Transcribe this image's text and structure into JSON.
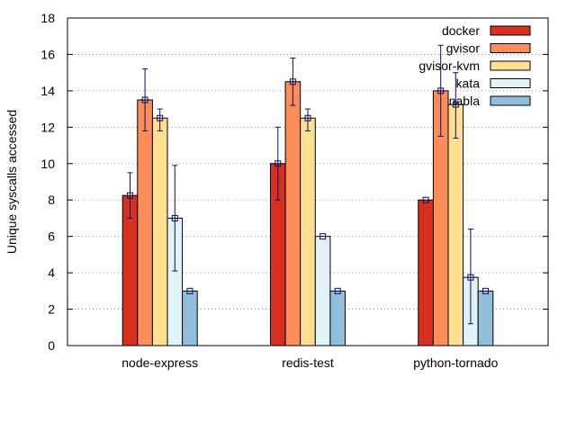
{
  "chart_data": {
    "type": "bar",
    "title": "",
    "xlabel": "",
    "ylabel": "Unique syscalls accessed",
    "ylim": [
      0,
      18
    ],
    "yticks": [
      0,
      2,
      4,
      6,
      8,
      10,
      12,
      14,
      16,
      18
    ],
    "grid": true,
    "legend_position": "top-right",
    "categories": [
      "node-express",
      "redis-test",
      "python-tornado"
    ],
    "series": [
      {
        "name": "docker",
        "color": "#d7301f",
        "values": [
          8.25,
          10.0,
          8.0
        ],
        "error_low": [
          7.0,
          8.0,
          8.0
        ],
        "error_high": [
          9.5,
          12.0,
          8.0
        ]
      },
      {
        "name": "gvisor",
        "color": "#fc8d59",
        "values": [
          13.5,
          14.5,
          14.0
        ],
        "error_low": [
          11.8,
          13.2,
          11.5
        ],
        "error_high": [
          15.2,
          15.8,
          16.5
        ]
      },
      {
        "name": "gvisor-kvm",
        "color": "#fee090",
        "values": [
          12.5,
          12.5,
          13.25
        ],
        "error_low": [
          11.8,
          11.8,
          11.4
        ],
        "error_high": [
          13.0,
          13.0,
          15.0
        ]
      },
      {
        "name": "kata",
        "color": "#e0f3f8",
        "values": [
          7.0,
          6.0,
          3.75
        ],
        "error_low": [
          4.1,
          6.0,
          1.2
        ],
        "error_high": [
          9.9,
          6.0,
          6.4
        ]
      },
      {
        "name": "nabla",
        "color": "#91bfdb",
        "values": [
          3.0,
          3.0,
          3.0
        ],
        "error_low": [
          3.0,
          3.0,
          3.0
        ],
        "error_high": [
          3.0,
          3.0,
          3.0
        ]
      }
    ]
  }
}
